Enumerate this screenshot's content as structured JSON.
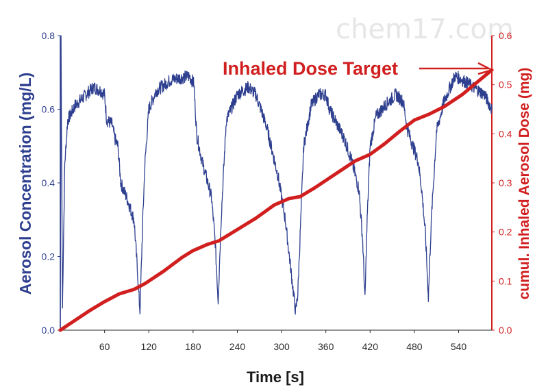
{
  "watermark": "chem17.com",
  "colors": {
    "concentration": "#2e3f8f",
    "dose": "#d11f1f",
    "axis_dark": "#2b2b2b"
  },
  "chart_data": {
    "type": "line",
    "xlabel": "Time [s]",
    "x_ticks": [
      60,
      120,
      180,
      240,
      300,
      360,
      420,
      480,
      540
    ],
    "xlim": [
      0,
      585
    ],
    "y_left": {
      "label": "Aerosol Concentration (mg/L)",
      "ticks": [
        "0.0",
        "0.2",
        "0.4",
        "0.6",
        "0.8"
      ],
      "lim": [
        0,
        0.8
      ]
    },
    "y_right": {
      "label": "cumul. Inhaled Aerosol Dose (mg)",
      "ticks": [
        "0.0",
        "0.1",
        "0.2",
        "0.3",
        "0.4",
        "0.5",
        "0.6"
      ],
      "lim": [
        0,
        0.6
      ]
    },
    "series": [
      {
        "name": "Aerosol Concentration",
        "axis": "left",
        "points": [
          [
            0,
            0.0
          ],
          [
            1,
            0.8
          ],
          [
            3,
            0.06
          ],
          [
            6,
            0.45
          ],
          [
            10,
            0.57
          ],
          [
            20,
            0.61
          ],
          [
            35,
            0.64
          ],
          [
            45,
            0.66
          ],
          [
            55,
            0.65
          ],
          [
            60,
            0.64
          ],
          [
            63,
            0.57
          ],
          [
            70,
            0.56
          ],
          [
            74,
            0.52
          ],
          [
            78,
            0.5
          ],
          [
            82,
            0.4
          ],
          [
            90,
            0.36
          ],
          [
            95,
            0.33
          ],
          [
            100,
            0.3
          ],
          [
            104,
            0.18
          ],
          [
            108,
            0.05
          ],
          [
            112,
            0.31
          ],
          [
            115,
            0.46
          ],
          [
            120,
            0.6
          ],
          [
            130,
            0.65
          ],
          [
            150,
            0.68
          ],
          [
            175,
            0.69
          ],
          [
            181,
            0.67
          ],
          [
            185,
            0.53
          ],
          [
            192,
            0.46
          ],
          [
            200,
            0.4
          ],
          [
            205,
            0.36
          ],
          [
            210,
            0.24
          ],
          [
            214,
            0.08
          ],
          [
            218,
            0.3
          ],
          [
            225,
            0.57
          ],
          [
            240,
            0.64
          ],
          [
            255,
            0.66
          ],
          [
            265,
            0.64
          ],
          [
            272,
            0.6
          ],
          [
            280,
            0.55
          ],
          [
            295,
            0.42
          ],
          [
            305,
            0.3
          ],
          [
            315,
            0.12
          ],
          [
            319,
            0.05
          ],
          [
            322,
            0.1
          ],
          [
            326,
            0.3
          ],
          [
            330,
            0.5
          ],
          [
            340,
            0.61
          ],
          [
            350,
            0.64
          ],
          [
            360,
            0.64
          ],
          [
            365,
            0.6
          ],
          [
            375,
            0.56
          ],
          [
            385,
            0.52
          ],
          [
            395,
            0.46
          ],
          [
            405,
            0.38
          ],
          [
            410,
            0.24
          ],
          [
            413,
            0.08
          ],
          [
            416,
            0.3
          ],
          [
            420,
            0.5
          ],
          [
            428,
            0.58
          ],
          [
            440,
            0.61
          ],
          [
            455,
            0.64
          ],
          [
            465,
            0.62
          ],
          [
            470,
            0.55
          ],
          [
            478,
            0.5
          ],
          [
            485,
            0.46
          ],
          [
            490,
            0.38
          ],
          [
            495,
            0.26
          ],
          [
            499,
            0.09
          ],
          [
            503,
            0.3
          ],
          [
            510,
            0.54
          ],
          [
            520,
            0.62
          ],
          [
            535,
            0.69
          ],
          [
            545,
            0.68
          ],
          [
            560,
            0.66
          ],
          [
            575,
            0.64
          ],
          [
            585,
            0.6
          ]
        ]
      },
      {
        "name": "cumul. Inhaled Aerosol Dose",
        "axis": "right",
        "points": [
          [
            0,
            0.0
          ],
          [
            20,
            0.02
          ],
          [
            40,
            0.04
          ],
          [
            60,
            0.058
          ],
          [
            80,
            0.074
          ],
          [
            100,
            0.083
          ],
          [
            115,
            0.095
          ],
          [
            140,
            0.12
          ],
          [
            165,
            0.148
          ],
          [
            180,
            0.162
          ],
          [
            200,
            0.175
          ],
          [
            215,
            0.182
          ],
          [
            240,
            0.205
          ],
          [
            265,
            0.228
          ],
          [
            290,
            0.255
          ],
          [
            310,
            0.268
          ],
          [
            325,
            0.272
          ],
          [
            345,
            0.29
          ],
          [
            365,
            0.31
          ],
          [
            385,
            0.33
          ],
          [
            400,
            0.345
          ],
          [
            420,
            0.358
          ],
          [
            440,
            0.38
          ],
          [
            460,
            0.405
          ],
          [
            480,
            0.428
          ],
          [
            500,
            0.44
          ],
          [
            520,
            0.455
          ],
          [
            545,
            0.48
          ],
          [
            565,
            0.505
          ],
          [
            585,
            0.53
          ]
        ]
      }
    ],
    "annotations": [
      {
        "text": "Inhaled Dose Target",
        "x": 585,
        "y_right": 0.53
      }
    ]
  }
}
